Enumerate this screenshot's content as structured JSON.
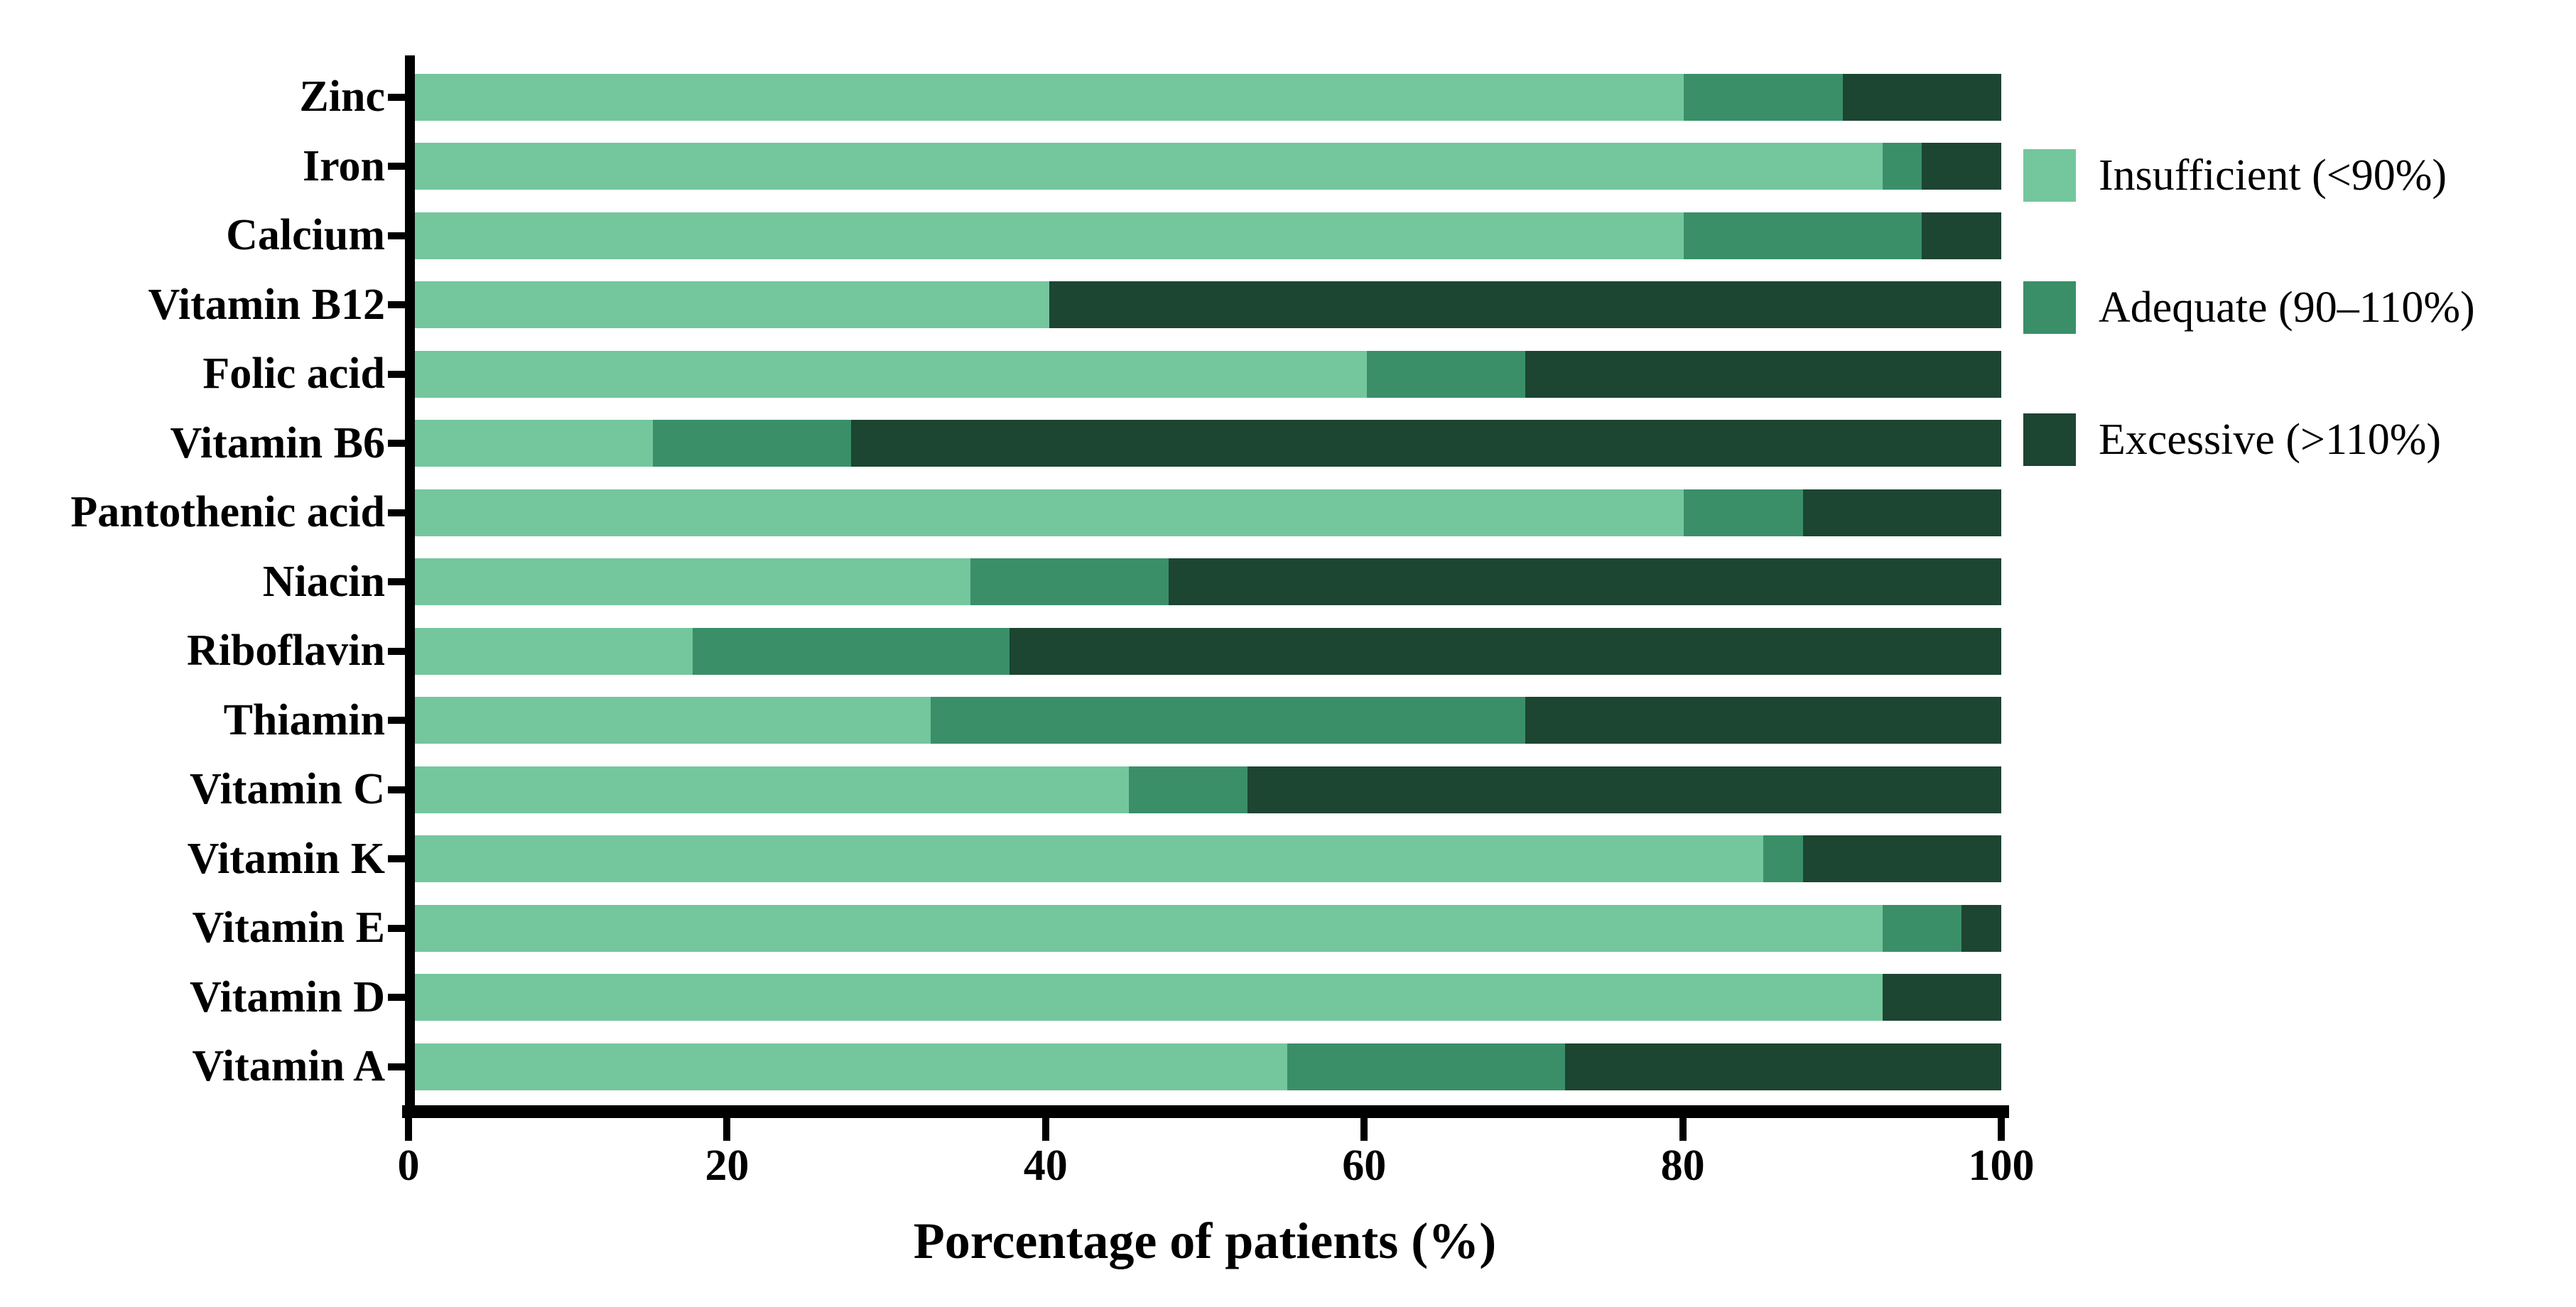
{
  "chart_data": {
    "type": "bar",
    "orientation": "horizontal-stacked",
    "xlabel": "Porcentage of patients (%)",
    "xlim": [
      0,
      100
    ],
    "x_ticks": [
      0,
      20,
      40,
      60,
      80,
      100
    ],
    "grid": false,
    "legend_position": "right-top",
    "categories_top_to_bottom": [
      "Zinc",
      "Iron",
      "Calcium",
      "Vitamin B12",
      "Folic acid",
      "Vitamin B6",
      "Pantothenic acid",
      "Niacin",
      "Riboflavin",
      "Thiamin",
      "Vitamin C",
      "Vitamin K",
      "Vitamin E",
      "Vitamin D",
      "Vitamin A"
    ],
    "series": [
      {
        "name": "Insufficient (<90%)",
        "color": "#74C69D",
        "values": [
          80,
          92.5,
          80,
          40,
          60,
          15,
          80,
          35,
          17.5,
          32.5,
          45,
          85,
          92.5,
          92.5,
          55
        ]
      },
      {
        "name": "Adequate (90–110%)",
        "color": "#3A8F68",
        "values": [
          10,
          2.5,
          15,
          0,
          10,
          12.5,
          7.5,
          12.5,
          20,
          37.5,
          7.5,
          2.5,
          5,
          0,
          17.5
        ]
      },
      {
        "name": "Excessive (>110%)",
        "color": "#1C4532",
        "values": [
          10,
          5,
          5,
          60,
          30,
          72.5,
          12.5,
          52.5,
          62.5,
          30,
          47.5,
          12.5,
          2.5,
          7.5,
          27.5
        ]
      }
    ],
    "axis_color": "#000000",
    "background_color": "#FFFFFF"
  }
}
